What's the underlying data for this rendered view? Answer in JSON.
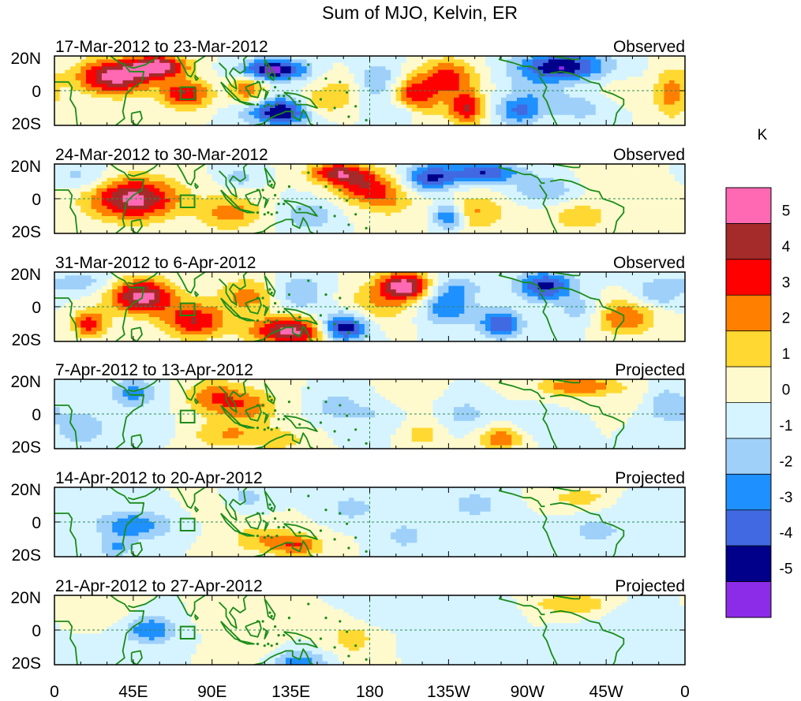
{
  "chart_data": {
    "type": "heatmap",
    "title": "Sum of MJO, Kelvin, ER",
    "panels": [
      {
        "dates": "17-Mar-2012 to 23-Mar-2012",
        "label": "Observed",
        "blobs": [
          [
            35,
            8,
            22,
            10,
            5.5
          ],
          [
            60,
            14,
            16,
            6,
            5.5
          ],
          [
            75,
            -2,
            14,
            8,
            4
          ],
          [
            125,
            12,
            18,
            6,
            -5.5
          ],
          [
            130,
            -12,
            20,
            8,
            -5
          ],
          [
            110,
            0,
            10,
            8,
            3
          ],
          [
            150,
            -8,
            12,
            8,
            2.5
          ],
          [
            165,
            0,
            12,
            10,
            1.5
          ],
          [
            185,
            5,
            14,
            12,
            -2
          ],
          [
            200,
            -12,
            12,
            8,
            -3
          ],
          [
            205,
            -5,
            14,
            12,
            4.5
          ],
          [
            225,
            8,
            15,
            10,
            3.5
          ],
          [
            235,
            -10,
            10,
            10,
            4
          ],
          [
            265,
            -12,
            12,
            8,
            -3
          ],
          [
            275,
            0,
            16,
            10,
            -1.5
          ],
          [
            290,
            14,
            25,
            8,
            -5
          ],
          [
            300,
            -10,
            18,
            8,
            -1.5
          ],
          [
            320,
            0,
            12,
            12,
            0.5
          ],
          [
            352,
            -2,
            10,
            14,
            2.5
          ]
        ]
      },
      {
        "dates": "24-Mar-2012 to 30-Mar-2012",
        "label": "Observed",
        "blobs": [
          [
            45,
            0,
            25,
            12,
            5.5
          ],
          [
            15,
            12,
            18,
            8,
            -1.5
          ],
          [
            100,
            -8,
            18,
            10,
            2.5
          ],
          [
            105,
            12,
            10,
            6,
            -1.5
          ],
          [
            145,
            -10,
            14,
            8,
            -2
          ],
          [
            160,
            15,
            15,
            6,
            4
          ],
          [
            175,
            8,
            16,
            10,
            3.5
          ],
          [
            190,
            0,
            14,
            10,
            2
          ],
          [
            215,
            12,
            14,
            8,
            -4
          ],
          [
            235,
            -8,
            22,
            10,
            2.5
          ],
          [
            225,
            -10,
            10,
            8,
            -4.5
          ],
          [
            245,
            15,
            20,
            6,
            -4
          ],
          [
            280,
            5,
            18,
            8,
            -2
          ],
          [
            300,
            -10,
            20,
            10,
            1.5
          ],
          [
            320,
            12,
            20,
            8,
            1
          ],
          [
            350,
            5,
            15,
            10,
            0.5
          ]
        ]
      },
      {
        "dates": "31-Mar-2012 to 6-Apr-2012",
        "label": "Observed",
        "blobs": [
          [
            20,
            -10,
            10,
            8,
            3.5
          ],
          [
            50,
            6,
            18,
            10,
            5.5
          ],
          [
            80,
            -8,
            18,
            10,
            4
          ],
          [
            110,
            6,
            16,
            10,
            2.5
          ],
          [
            135,
            -14,
            22,
            8,
            5.5
          ],
          [
            140,
            8,
            14,
            10,
            -2
          ],
          [
            165,
            -12,
            14,
            8,
            -5.5
          ],
          [
            185,
            2,
            18,
            12,
            2
          ],
          [
            200,
            12,
            14,
            8,
            5.5
          ],
          [
            225,
            0,
            15,
            10,
            -3
          ],
          [
            230,
            12,
            14,
            6,
            -1.5
          ],
          [
            255,
            -10,
            12,
            8,
            -4
          ],
          [
            280,
            12,
            16,
            8,
            -4.5
          ],
          [
            300,
            -3,
            14,
            10,
            -1.5
          ],
          [
            325,
            -6,
            18,
            10,
            3
          ],
          [
            345,
            8,
            14,
            8,
            -2
          ],
          [
            15,
            14,
            20,
            6,
            -1.5
          ]
        ]
      },
      {
        "dates": "7-Apr-2012 to 13-Apr-2012",
        "label": "Projected",
        "blobs": [
          [
            15,
            -8,
            14,
            10,
            -2
          ],
          [
            45,
            12,
            14,
            8,
            -2.5
          ],
          [
            90,
            10,
            15,
            10,
            2.5
          ],
          [
            110,
            5,
            18,
            10,
            2.5
          ],
          [
            100,
            -12,
            22,
            8,
            2
          ],
          [
            130,
            -15,
            14,
            6,
            1.5
          ],
          [
            160,
            5,
            12,
            8,
            -1.5
          ],
          [
            180,
            0,
            16,
            10,
            -1
          ],
          [
            200,
            12,
            12,
            8,
            1
          ],
          [
            210,
            -12,
            10,
            8,
            1.5
          ],
          [
            235,
            0,
            12,
            8,
            -1.5
          ],
          [
            255,
            -14,
            12,
            6,
            3
          ],
          [
            275,
            -5,
            12,
            8,
            -1
          ],
          [
            300,
            16,
            22,
            6,
            3
          ],
          [
            330,
            10,
            12,
            8,
            0.5
          ],
          [
            350,
            5,
            12,
            10,
            -2
          ],
          [
            60,
            -8,
            12,
            8,
            -0.5
          ]
        ]
      },
      {
        "dates": "14-Apr-2012 to 20-Apr-2012",
        "label": "Projected",
        "blobs": [
          [
            45,
            -2,
            20,
            8,
            -3
          ],
          [
            35,
            -15,
            10,
            6,
            -2
          ],
          [
            120,
            -10,
            20,
            8,
            2
          ],
          [
            140,
            -14,
            14,
            6,
            2.5
          ],
          [
            90,
            10,
            12,
            8,
            0.5
          ],
          [
            110,
            14,
            12,
            6,
            -1.5
          ],
          [
            170,
            8,
            14,
            8,
            -1.5
          ],
          [
            200,
            -8,
            12,
            8,
            -1.5
          ],
          [
            240,
            10,
            16,
            8,
            -1.5
          ],
          [
            260,
            -10,
            14,
            8,
            -1
          ],
          [
            300,
            14,
            18,
            6,
            1.5
          ],
          [
            310,
            -5,
            16,
            8,
            -1.5
          ],
          [
            335,
            10,
            14,
            6,
            -1
          ]
        ]
      },
      {
        "dates": "21-Apr-2012 to 27-Apr-2012",
        "label": "Projected",
        "blobs": [
          [
            55,
            0,
            14,
            8,
            -3
          ],
          [
            30,
            12,
            14,
            8,
            1
          ],
          [
            100,
            8,
            14,
            8,
            1
          ],
          [
            110,
            -10,
            14,
            8,
            1
          ],
          [
            140,
            -18,
            16,
            6,
            -2.5
          ],
          [
            170,
            -5,
            14,
            10,
            1.5
          ],
          [
            185,
            10,
            14,
            8,
            -1
          ],
          [
            220,
            -6,
            14,
            8,
            -1
          ],
          [
            250,
            12,
            14,
            6,
            -1
          ],
          [
            295,
            15,
            22,
            6,
            2
          ],
          [
            300,
            -5,
            14,
            8,
            -0.5
          ],
          [
            330,
            5,
            14,
            10,
            -1
          ],
          [
            20,
            -12,
            12,
            6,
            -0.5
          ]
        ]
      }
    ],
    "x_ticks": [
      "0",
      "45E",
      "90E",
      "135E",
      "180",
      "135W",
      "90W",
      "45W",
      "0"
    ],
    "x_tick_values": [
      0,
      45,
      90,
      135,
      180,
      225,
      270,
      315,
      360
    ],
    "y_ticks": [
      "20N",
      "0",
      "20S"
    ],
    "y_tick_values": [
      20,
      0,
      -20
    ],
    "xlim": [
      0,
      360
    ],
    "ylim": [
      -20,
      20
    ],
    "colorbar": {
      "unit": "K",
      "levels": [
        -5,
        -4,
        -3,
        -2,
        -1,
        0,
        1,
        2,
        3,
        4,
        5
      ],
      "labels": [
        "5",
        "4",
        "3",
        "2",
        "1",
        "0",
        "-1",
        "-2",
        "-3",
        "-4",
        "-5"
      ],
      "colors": [
        "#8c2be8",
        "#00008b",
        "#4169e1",
        "#1e90ff",
        "#9ed0fa",
        "#d6f4ff",
        "#fffacd",
        "#ffd932",
        "#ff7f00",
        "#ff0000",
        "#a52a2a",
        "#ff69b4"
      ]
    },
    "grid_lines": {
      "vertical_at": 180,
      "horizontal_at": 0,
      "style": "dashed",
      "color": "#2e8b57"
    },
    "coastline_color": "#1a8c1a",
    "box_region": {
      "lon_min": 72,
      "lon_max": 80,
      "lat_min": -5,
      "lat_max": 2
    }
  }
}
